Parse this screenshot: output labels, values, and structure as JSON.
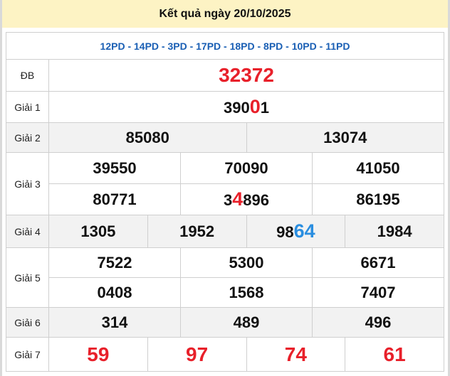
{
  "header": {
    "title": "Kết quả ngày 20/10/2025"
  },
  "codes": "12PD - 14PD - 3PD - 17PD - 18PD - 8PD - 10PD - 11PD",
  "labels": {
    "db": "ĐB",
    "g1": "Giải 1",
    "g2": "Giải 2",
    "g3": "Giải 3",
    "g4": "Giải 4",
    "g5": "Giải 5",
    "g6": "Giải 6",
    "g7": "Giải 7"
  },
  "prizes": {
    "db": "32372",
    "g1": {
      "pre": "390",
      "hl": "0",
      "post": "1"
    },
    "g2": [
      "85080",
      "13074"
    ],
    "g3": [
      "39550",
      "70090",
      "41050",
      "80771",
      {
        "pre": "3",
        "hl": "4",
        "post": "896"
      },
      "86195"
    ],
    "g4": [
      "1305",
      "1952",
      {
        "pre": "98",
        "hl": "64"
      },
      "1984"
    ],
    "g5": [
      "7522",
      "5300",
      "6671",
      "0408",
      "1568",
      "7407"
    ],
    "g6": [
      "314",
      "489",
      "496"
    ],
    "g7": [
      "59",
      "97",
      "74",
      "61"
    ]
  },
  "colors": {
    "highlight_red": "#e8202a",
    "highlight_blue": "#2a8ee0",
    "codes": "#1a5fb4",
    "header_bg": "#fdf3c4"
  }
}
